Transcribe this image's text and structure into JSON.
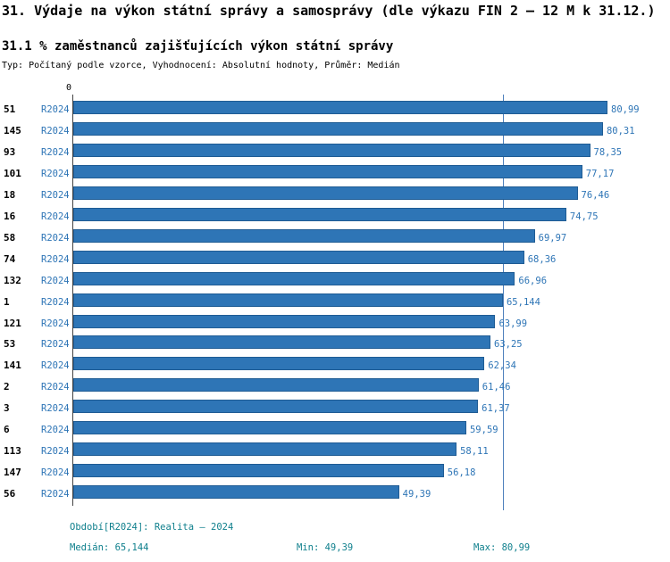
{
  "header": {
    "title": "31. Výdaje na výkon státní správy a samosprávy (dle výkazu FIN 2 – 12 M k 31.12.)",
    "subtitle": "31.1 % zaměstnanců zajišťujících výkon státní správy",
    "meta": "Typ: Počítaný podle vzorce, Vyhodnocení: Absolutní hodnoty, Průměr: Medián"
  },
  "chart_data": {
    "type": "bar",
    "orientation": "horizontal",
    "title": "31.1 % zaměstnanců zajišťujících výkon státní správy",
    "axis_zero_label": "0",
    "xlim": [
      0,
      80.99
    ],
    "median": 65.144,
    "grid": false,
    "legend": "none",
    "colors": {
      "bar": "#2e75b6",
      "bar_edge": "#1f5c94",
      "median_line": "#4f81bd",
      "footer_text": "#0e7f8c"
    },
    "rows": [
      {
        "id": "51",
        "period": "R2024",
        "value": 80.99,
        "display": "80,99"
      },
      {
        "id": "145",
        "period": "R2024",
        "value": 80.31,
        "display": "80,31"
      },
      {
        "id": "93",
        "period": "R2024",
        "value": 78.35,
        "display": "78,35"
      },
      {
        "id": "101",
        "period": "R2024",
        "value": 77.17,
        "display": "77,17"
      },
      {
        "id": "18",
        "period": "R2024",
        "value": 76.46,
        "display": "76,46"
      },
      {
        "id": "16",
        "period": "R2024",
        "value": 74.75,
        "display": "74,75"
      },
      {
        "id": "58",
        "period": "R2024",
        "value": 69.97,
        "display": "69,97"
      },
      {
        "id": "74",
        "period": "R2024",
        "value": 68.36,
        "display": "68,36"
      },
      {
        "id": "132",
        "period": "R2024",
        "value": 66.96,
        "display": "66,96"
      },
      {
        "id": "1",
        "period": "R2024",
        "value": 65.144,
        "display": "65,144"
      },
      {
        "id": "121",
        "period": "R2024",
        "value": 63.99,
        "display": "63,99"
      },
      {
        "id": "53",
        "period": "R2024",
        "value": 63.25,
        "display": "63,25"
      },
      {
        "id": "141",
        "period": "R2024",
        "value": 62.34,
        "display": "62,34"
      },
      {
        "id": "2",
        "period": "R2024",
        "value": 61.46,
        "display": "61,46"
      },
      {
        "id": "3",
        "period": "R2024",
        "value": 61.37,
        "display": "61,37"
      },
      {
        "id": "6",
        "period": "R2024",
        "value": 59.59,
        "display": "59,59"
      },
      {
        "id": "113",
        "period": "R2024",
        "value": 58.11,
        "display": "58,11"
      },
      {
        "id": "147",
        "period": "R2024",
        "value": 56.18,
        "display": "56,18"
      },
      {
        "id": "56",
        "period": "R2024",
        "value": 49.39,
        "display": "49,39"
      }
    ]
  },
  "footer": {
    "period_line": "Období[R2024]: Realita – 2024",
    "median_label": "Medián: 65,144",
    "min_label": "Min: 49,39",
    "max_label": "Max: 80,99"
  }
}
